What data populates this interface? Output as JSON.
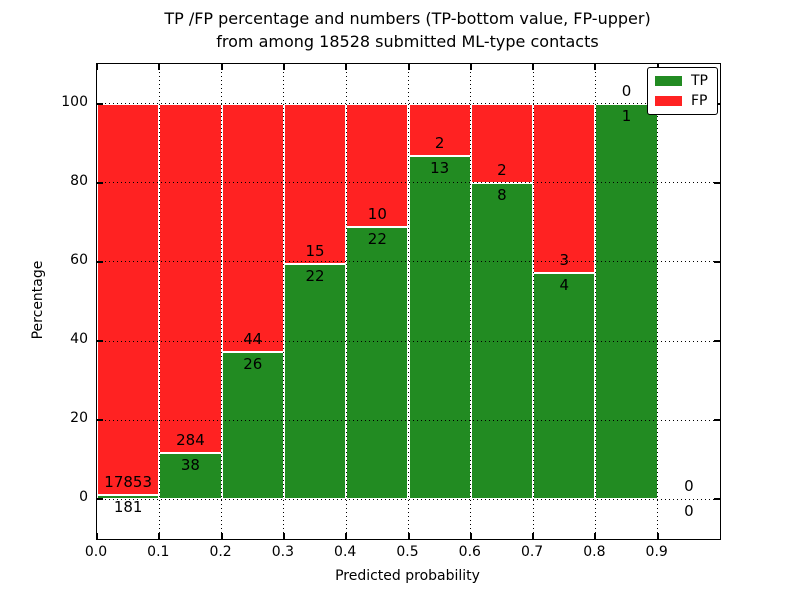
{
  "chart_data": {
    "type": "bar",
    "stacked": true,
    "title_lines": [
      "TP /FP percentage and numbers (TP-bottom value, FP-upper)",
      "from among 18528 submitted ML-type contacts"
    ],
    "xlabel": "Predicted probability",
    "ylabel": "Percentage",
    "total_contacts": 18528,
    "xlim": [
      0.0,
      1.0
    ],
    "ylim": [
      -10,
      110
    ],
    "x_tick_labels": [
      "0.0",
      "0.1",
      "0.2",
      "0.3",
      "0.4",
      "0.5",
      "0.6",
      "0.7",
      "0.8",
      "0.9"
    ],
    "y_tick_values": [
      0,
      20,
      40,
      60,
      80,
      100
    ],
    "bin_width": 0.1,
    "bin_starts": [
      0.0,
      0.1,
      0.2,
      0.3,
      0.4,
      0.5,
      0.6,
      0.7,
      0.8,
      0.9
    ],
    "series": [
      {
        "name": "TP",
        "color": "#228B22",
        "counts": [
          181,
          38,
          26,
          22,
          22,
          13,
          8,
          4,
          1,
          0
        ]
      },
      {
        "name": "FP",
        "color": "#FF2222",
        "counts": [
          17853,
          284,
          44,
          15,
          10,
          2,
          2,
          3,
          0,
          0
        ]
      }
    ],
    "bar_semantics": "each bin normalized to 100%: TP% = TP/(TP+FP); labels show raw counts (FP above boundary, TP below)",
    "grid": "dotted black, drawn over bars",
    "bar_edge_color": "#ffffff",
    "legend_position": "upper right",
    "tick_direction": "in, all four spines"
  }
}
